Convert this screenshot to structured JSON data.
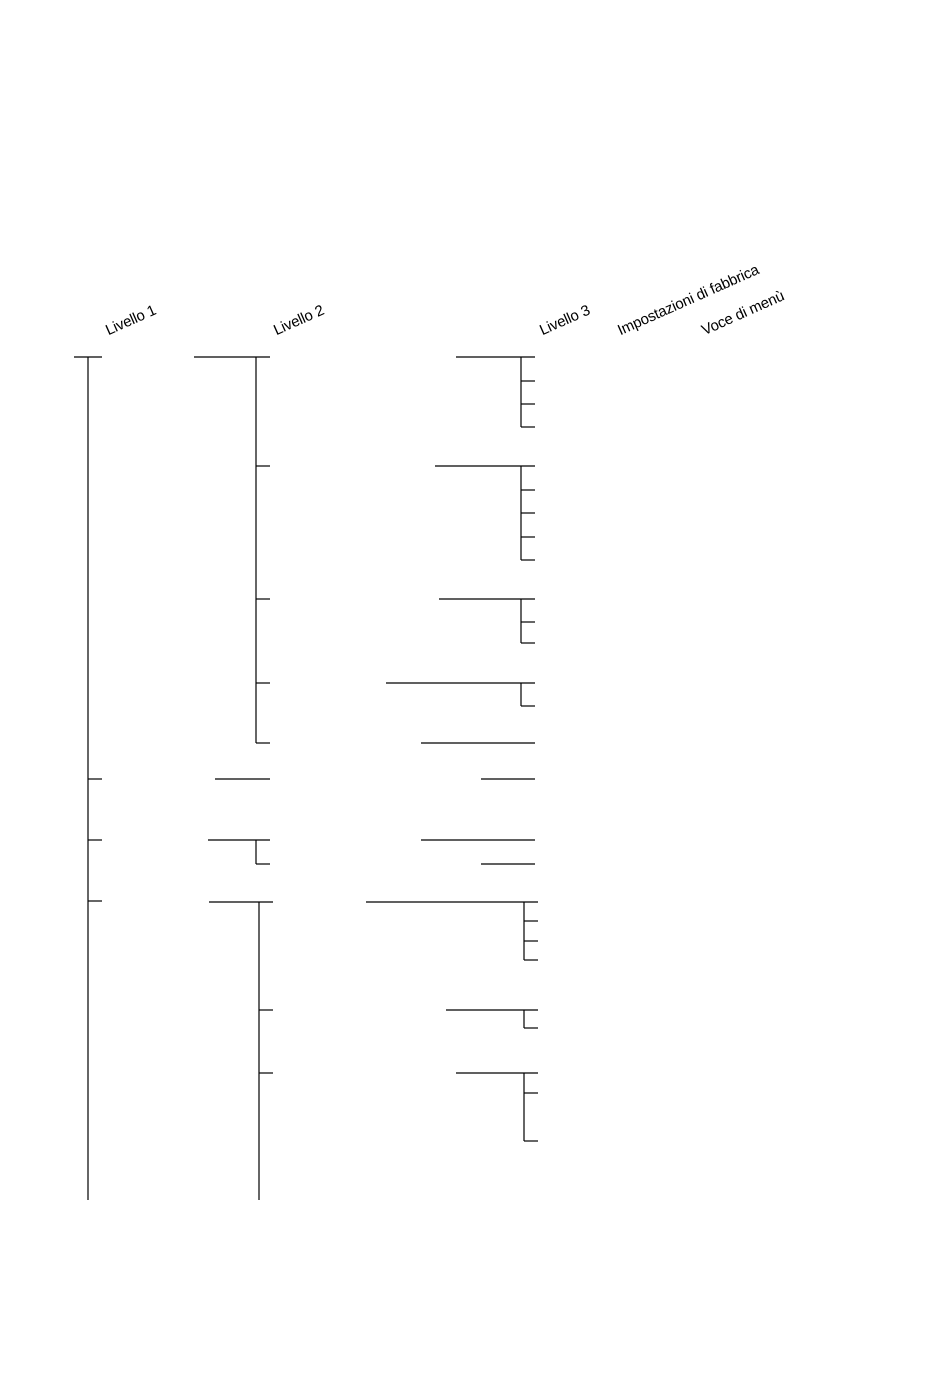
{
  "headers": {
    "level1": "Livello 1",
    "level2": "Livello 2",
    "level3": "Livello 3",
    "factory": "Impostazioni di fabbrica",
    "menu_item": "Voce di menù"
  }
}
